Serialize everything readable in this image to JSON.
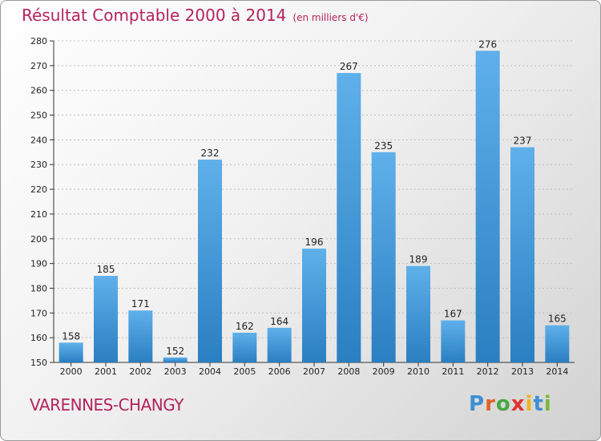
{
  "header": {
    "title": "Résultat Comptable 2000 à 2014",
    "unit": "(en milliers d'€)"
  },
  "footer": {
    "commune": "VARENNES-CHANGY",
    "logo_letters": [
      {
        "ch": "P",
        "color": "#3d8fd1"
      },
      {
        "ch": "r",
        "color": "#e2612a"
      },
      {
        "ch": "o",
        "color": "#4aa843"
      },
      {
        "ch": "x",
        "color": "#e0322d"
      },
      {
        "ch": "i",
        "color": "#f0b31f"
      },
      {
        "ch": "t",
        "color": "#3d8fd1"
      },
      {
        "ch": "i",
        "color": "#7bb83a"
      }
    ]
  },
  "colors": {
    "bar_light": "#5fb0ea",
    "bar_dark": "#2a7fc2",
    "grid": "#bdbdbd",
    "title": "#b3245a"
  },
  "chart_data": {
    "type": "bar",
    "title": "Résultat Comptable 2000 à 2014",
    "subtitle": "(en milliers d'€)",
    "categories": [
      "2000",
      "2001",
      "2002",
      "2003",
      "2004",
      "2005",
      "2006",
      "2007",
      "2008",
      "2009",
      "2010",
      "2011",
      "2012",
      "2013",
      "2014"
    ],
    "values": [
      158,
      185,
      171,
      152,
      232,
      162,
      164,
      196,
      267,
      235,
      189,
      167,
      276,
      237,
      165
    ],
    "ylim": [
      150,
      280
    ],
    "yticks": [
      150,
      160,
      170,
      180,
      190,
      200,
      210,
      220,
      230,
      240,
      250,
      260,
      270,
      280
    ],
    "grid": true
  }
}
